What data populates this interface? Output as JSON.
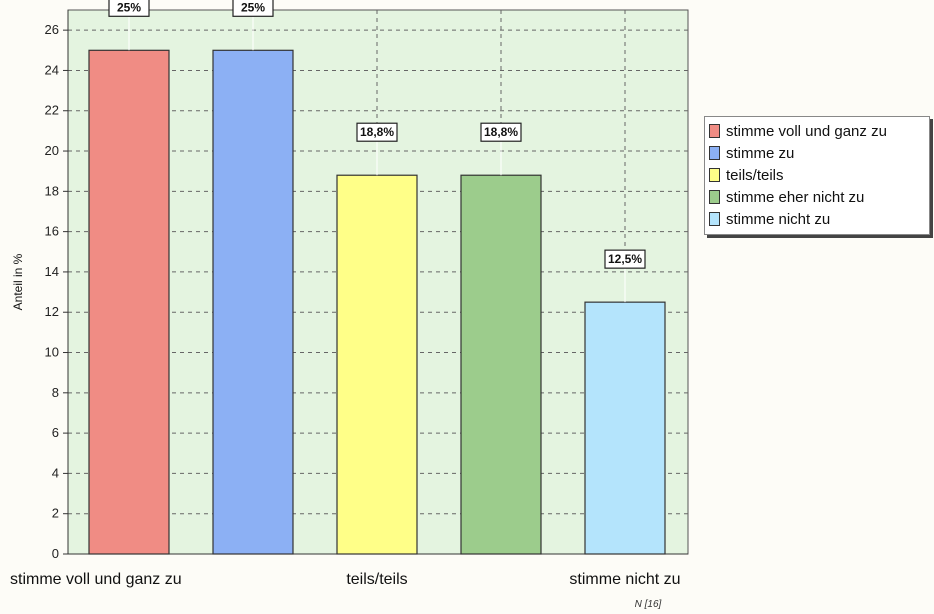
{
  "chart_data": {
    "type": "bar",
    "categories": [
      "stimme voll und ganz zu",
      "stimme zu",
      "teils/teils",
      "stimme eher nicht zu",
      "stimme nicht zu"
    ],
    "category_tick_labels": [
      "stimme voll und ganz zu",
      "",
      "teils/teils",
      "",
      "stimme nicht zu"
    ],
    "values": [
      25,
      25,
      18.8,
      18.8,
      12.5
    ],
    "data_labels": [
      "25%",
      "25%",
      "18,8%",
      "18,8%",
      "12,5%"
    ],
    "colors": [
      "#f08c84",
      "#8cb0f4",
      "#ffff88",
      "#9ccc8c",
      "#b4e4fc"
    ],
    "xlabel": "",
    "ylabel": "Anteil in %",
    "ylim": [
      0,
      27
    ],
    "yticks": [
      0,
      2,
      4,
      6,
      8,
      10,
      12,
      14,
      16,
      18,
      20,
      22,
      24,
      26
    ],
    "grid": true,
    "plot_background": "#e4f4e0",
    "legend_position": "right",
    "note": "N [16]"
  }
}
